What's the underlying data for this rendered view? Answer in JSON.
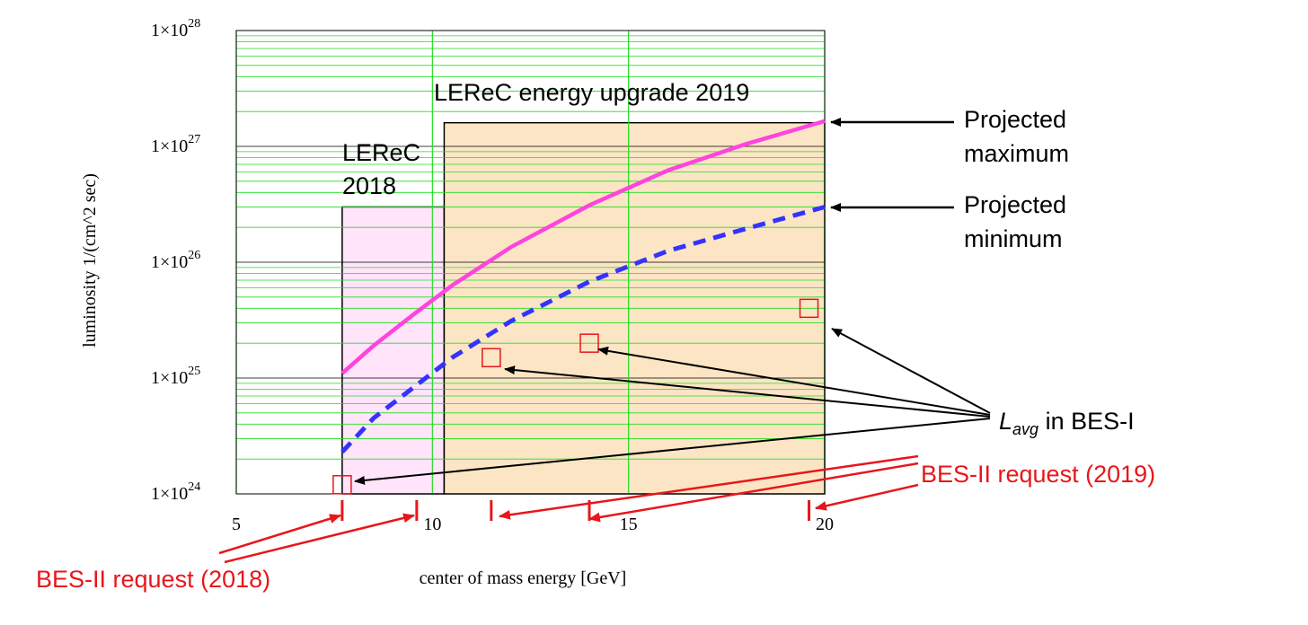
{
  "chart_data": {
    "type": "line",
    "xlabel": "center of mass energy [GeV]",
    "ylabel": "luminosity 1/(cm^2 sec)",
    "xlim": [
      5,
      20
    ],
    "ylim": [
      1e+24,
      1e+28
    ],
    "y_scale": "log",
    "grid": true,
    "x_ticks": [
      {
        "value": 5,
        "label": "5"
      },
      {
        "value": 10,
        "label": "10"
      },
      {
        "value": 15,
        "label": "15"
      },
      {
        "value": 20,
        "label": "20"
      }
    ],
    "y_ticks": [
      {
        "exp": 24,
        "mantissa": "1×10",
        "power": "24"
      },
      {
        "exp": 25,
        "mantissa": "1×10",
        "power": "25"
      },
      {
        "exp": 26,
        "mantissa": "1×10",
        "power": "26"
      },
      {
        "exp": 27,
        "mantissa": "1×10",
        "power": "27"
      },
      {
        "exp": 28,
        "mantissa": "1×10",
        "power": "28"
      }
    ],
    "series": [
      {
        "name": "Projected maximum",
        "style": "solid",
        "color": "#ff44dd",
        "x": [
          7.7,
          8.5,
          9.5,
          10.5,
          12,
          14,
          16,
          18,
          20
        ],
        "y": [
          1.1e+25,
          1.9e+25,
          3.5e+25,
          6.3e+25,
          1.35e+26,
          3.1e+26,
          6.2e+26,
          1.05e+27,
          1.65e+27
        ]
      },
      {
        "name": "Projected minimum",
        "style": "dashed",
        "color": "#3333ff",
        "x": [
          7.7,
          8.5,
          9.5,
          10.5,
          12,
          14,
          16,
          18,
          20
        ],
        "y": [
          2.3e+24,
          4.5e+24,
          8.2e+24,
          1.5e+25,
          3.1e+25,
          6.8e+25,
          1.25e+26,
          1.95e+26,
          3e+26
        ]
      }
    ],
    "regions": [
      {
        "label_lines": [
          "LEReC",
          "2018"
        ],
        "x0": 7.7,
        "x1": 10.3,
        "y0": 1e+24,
        "y1": 3e+26,
        "color": "#ffe4fa"
      },
      {
        "label_lines": [
          "LEReC energy upgrade 2019"
        ],
        "x0": 10.3,
        "x1": 20,
        "y0": 1e+24,
        "y1": 1.6e+27,
        "color": "#fbe5c4"
      }
    ],
    "bes1_points": {
      "label_main": "L",
      "label_sub": "avg",
      "label_rest": " in BES-I",
      "color": "#e8161b",
      "x": [
        7.7,
        11.5,
        14,
        19.6
      ],
      "y": [
        1.2e+24,
        1.5e+25,
        2e+25,
        4e+25
      ]
    },
    "bes2_2018": {
      "label": "BES-II request (2018)",
      "x": [
        7.7,
        9.6
      ],
      "color": "#e8161b"
    },
    "bes2_2019": {
      "label": "BES-II request (2019)",
      "x": [
        11.5,
        14,
        19.6
      ],
      "color": "#e8161b"
    },
    "annotations": [
      {
        "lines": [
          "Projected",
          "maximum"
        ]
      },
      {
        "lines": [
          "Projected",
          "minimum"
        ]
      }
    ]
  }
}
